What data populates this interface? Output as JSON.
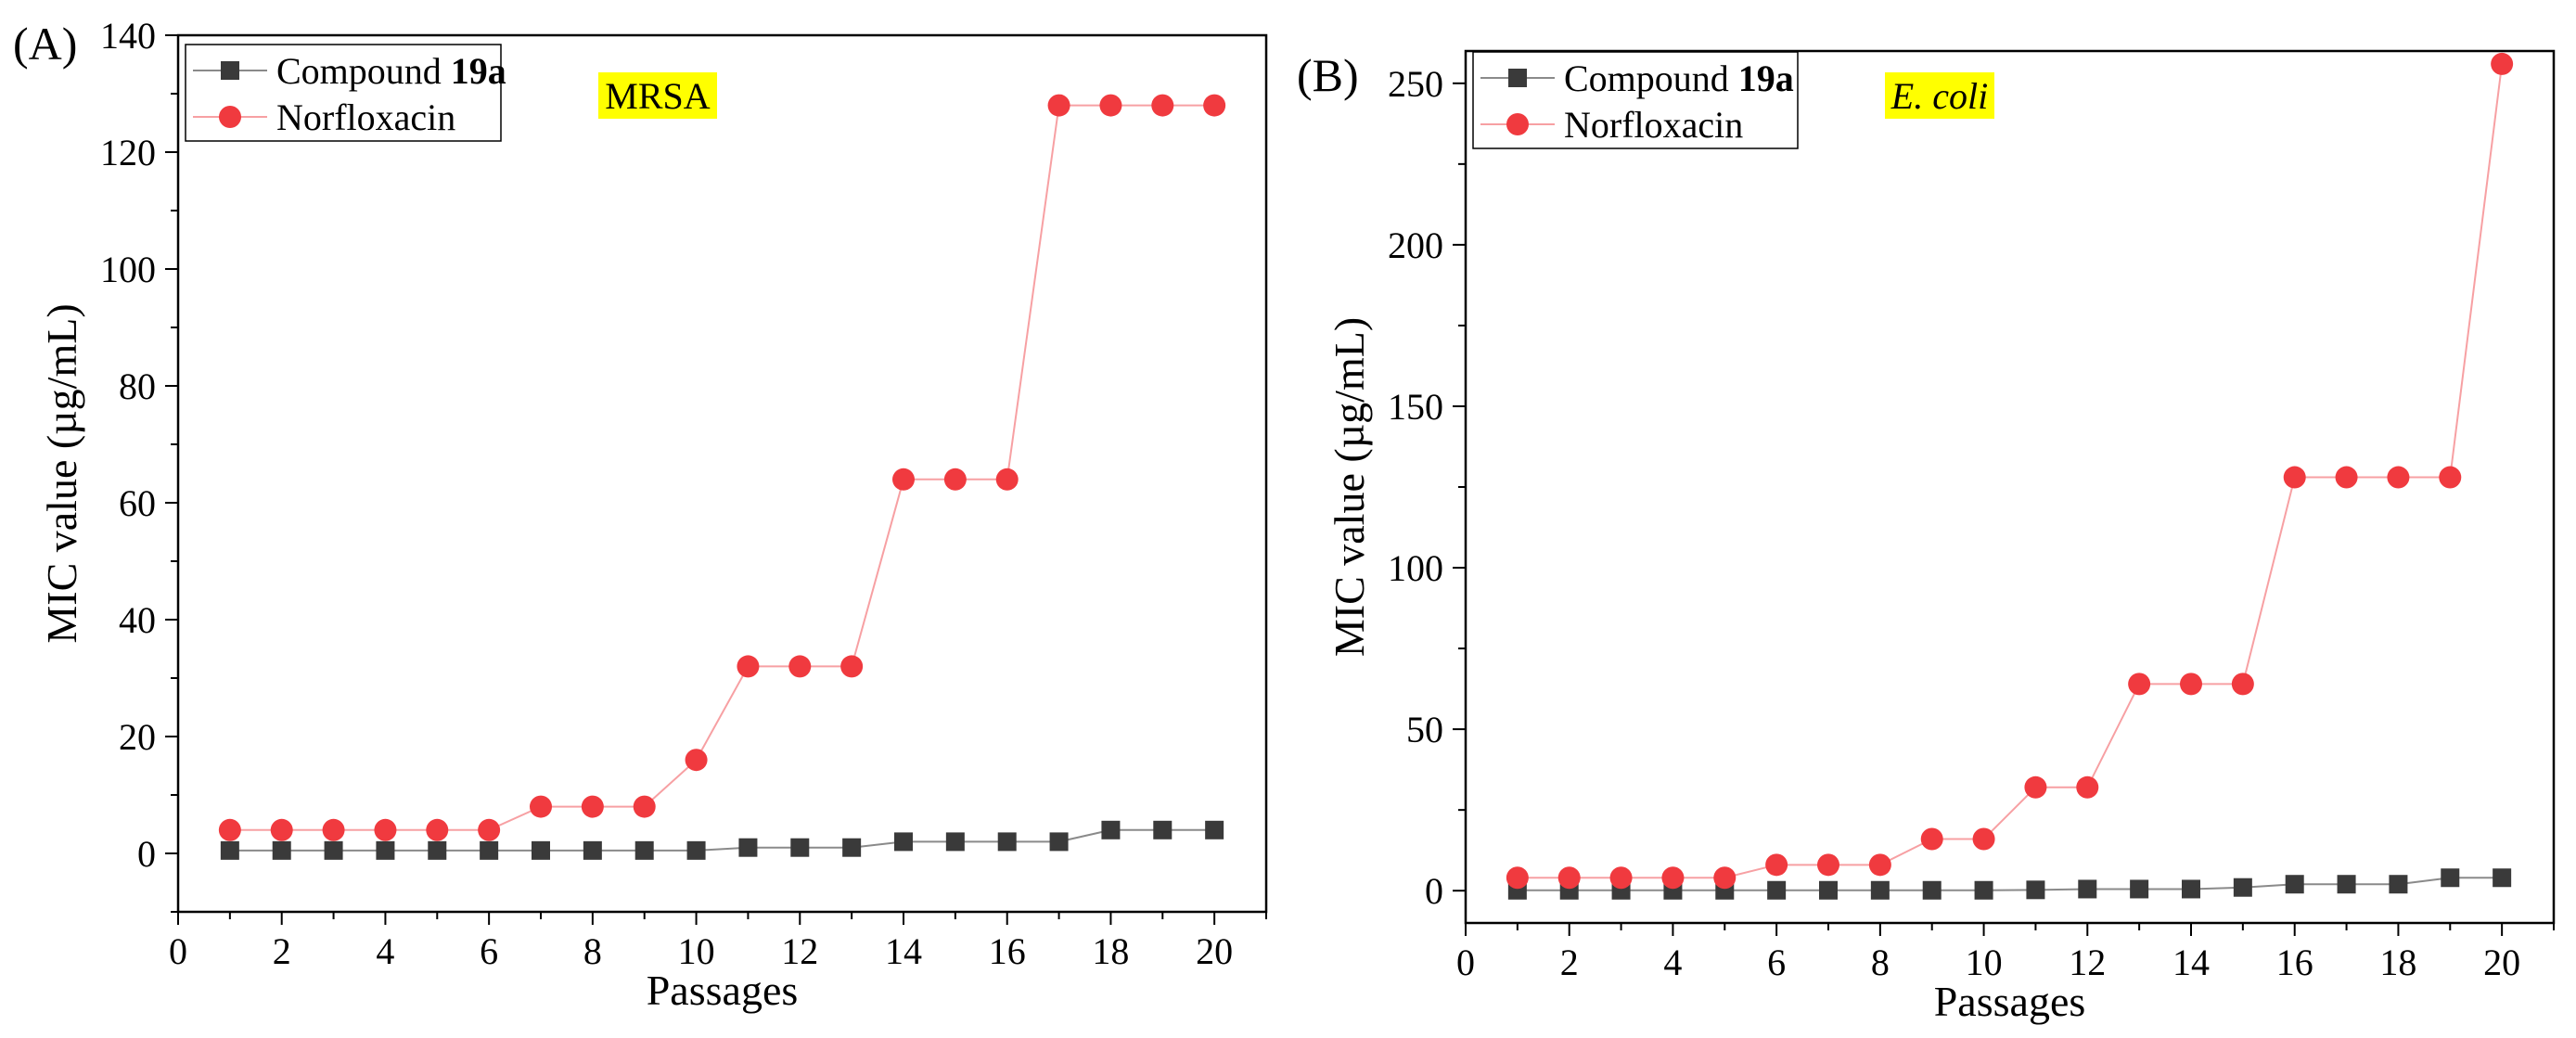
{
  "figure": {
    "panels": [
      {
        "panel_label": "(A)",
        "organism_tag": "MRSA",
        "organism_italic": false
      },
      {
        "panel_label": "(B)",
        "organism_tag": "E. coli",
        "organism_italic": true
      }
    ]
  },
  "chart_data": [
    {
      "type": "line",
      "title": "MRSA",
      "xlabel": "Passages",
      "ylabel": "MIC value (µg/mL)",
      "xlim": [
        0,
        21
      ],
      "ylim": [
        -10,
        140
      ],
      "xticks": [
        0,
        2,
        4,
        6,
        8,
        10,
        12,
        14,
        16,
        18,
        20
      ],
      "yticks": [
        0,
        20,
        40,
        60,
        80,
        100,
        120,
        140
      ],
      "legend_position": "top-left",
      "x": [
        1,
        2,
        3,
        4,
        5,
        6,
        7,
        8,
        9,
        10,
        11,
        12,
        13,
        14,
        15,
        16,
        17,
        18,
        19,
        20
      ],
      "series": [
        {
          "name": "Compound 19a",
          "name_plain": "Compound ",
          "name_bold": "19a",
          "marker": "square",
          "color": "#3a3a3a",
          "line_color": "#8a8a8a",
          "values": [
            0.5,
            0.5,
            0.5,
            0.5,
            0.5,
            0.5,
            0.5,
            0.5,
            0.5,
            0.5,
            1,
            1,
            1,
            2,
            2,
            2,
            2,
            4,
            4,
            4
          ]
        },
        {
          "name": "Norfloxacin",
          "name_plain": "Norfloxacin",
          "name_bold": "",
          "marker": "circle",
          "color": "#f03a3f",
          "line_color": "#f7a0a3",
          "values": [
            4,
            4,
            4,
            4,
            4,
            4,
            8,
            8,
            8,
            16,
            32,
            32,
            32,
            64,
            64,
            64,
            128,
            128,
            128,
            128
          ]
        }
      ]
    },
    {
      "type": "line",
      "title": "E. coli",
      "xlabel": "Passages",
      "ylabel": "MIC value (µg/mL)",
      "xlim": [
        0,
        21
      ],
      "ylim": [
        -10,
        260
      ],
      "xticks": [
        0,
        2,
        4,
        6,
        8,
        10,
        12,
        14,
        16,
        18,
        20
      ],
      "yticks": [
        0,
        50,
        100,
        150,
        200,
        250
      ],
      "legend_position": "top-left",
      "x": [
        1,
        2,
        3,
        4,
        5,
        6,
        7,
        8,
        9,
        10,
        11,
        12,
        13,
        14,
        15,
        16,
        17,
        18,
        19,
        20
      ],
      "series": [
        {
          "name": "Compound 19a",
          "name_plain": "Compound ",
          "name_bold": "19a",
          "marker": "square",
          "color": "#3a3a3a",
          "line_color": "#8a8a8a",
          "values": [
            0.125,
            0.125,
            0.125,
            0.125,
            0.125,
            0.125,
            0.125,
            0.125,
            0.125,
            0.125,
            0.25,
            0.5,
            0.5,
            0.5,
            1,
            2,
            2,
            2,
            4,
            4
          ]
        },
        {
          "name": "Norfloxacin",
          "name_plain": "Norfloxacin",
          "name_bold": "",
          "marker": "circle",
          "color": "#f03a3f",
          "line_color": "#f7a0a3",
          "values": [
            4,
            4,
            4,
            4,
            4,
            8,
            8,
            8,
            16,
            16,
            32,
            32,
            64,
            64,
            64,
            128,
            128,
            128,
            128,
            256
          ]
        }
      ]
    }
  ]
}
